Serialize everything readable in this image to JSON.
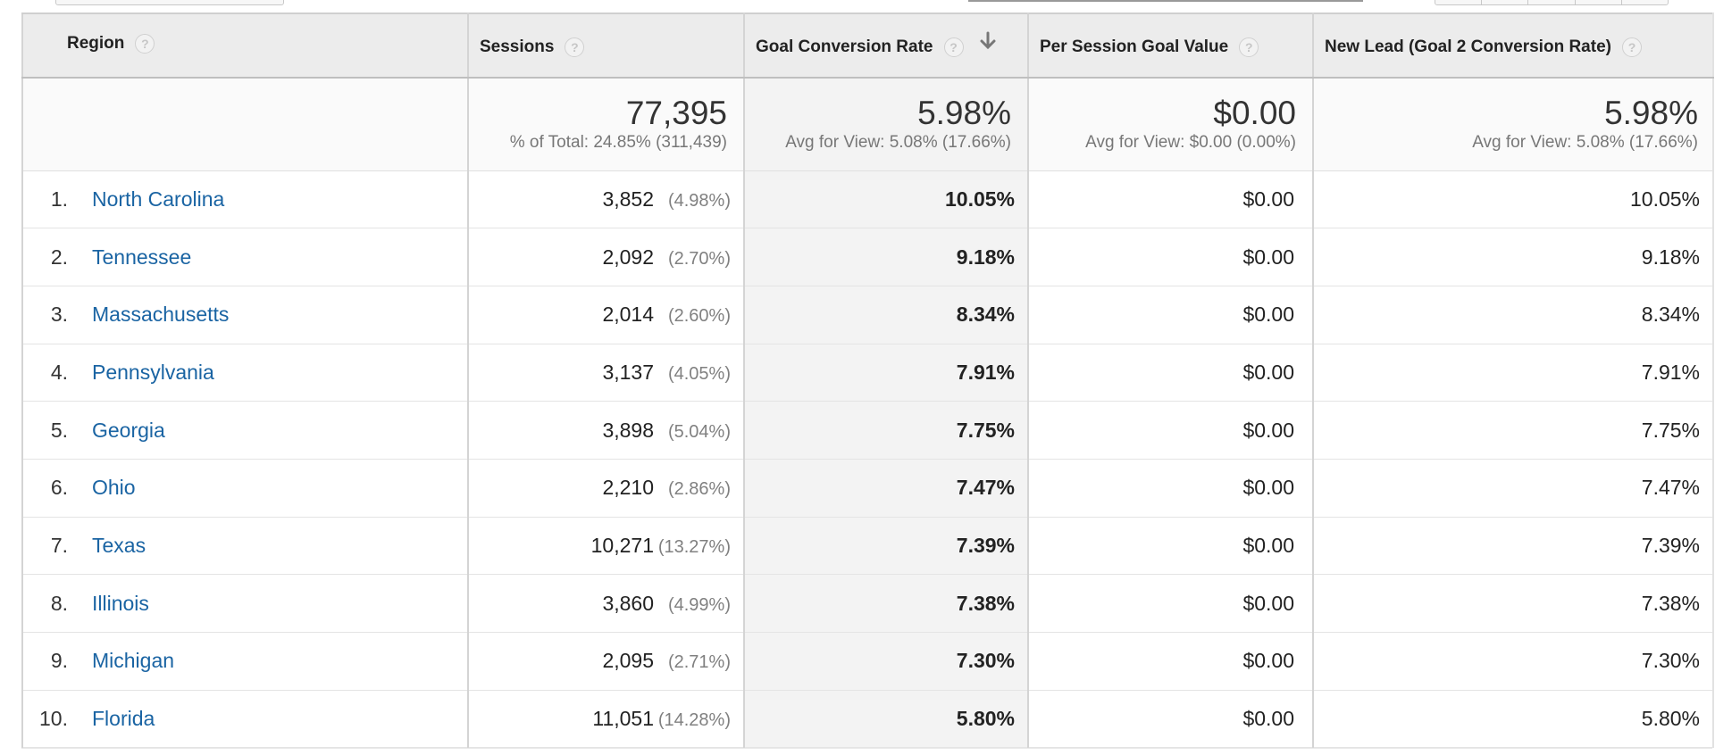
{
  "columns": {
    "region": "Region",
    "sessions": "Sessions",
    "goal_conversion_rate": "Goal Conversion Rate",
    "per_session_goal_value": "Per Session Goal Value",
    "new_lead": "New Lead (Goal 2 Conversion Rate)",
    "help_glyph": "?"
  },
  "sort": {
    "column": "goal_conversion_rate",
    "direction": "descending",
    "icon": "arrow-down-icon"
  },
  "totals": {
    "sessions": "77,395",
    "sessions_sub": "% of Total: 24.85% (311,439)",
    "goal_conversion_rate": "5.98%",
    "goal_conversion_rate_sub": "Avg for View: 5.08% (17.66%)",
    "per_session_goal_value": "$0.00",
    "per_session_goal_value_sub": "Avg for View: $0.00 (0.00%)",
    "new_lead": "5.98%",
    "new_lead_sub": "Avg for View: 5.08% (17.66%)"
  },
  "rows": [
    {
      "idx": "1.",
      "region": "North Carolina",
      "sessions": "3,852",
      "sessions_pct": "(4.98%)",
      "gcr": "10.05%",
      "psv": "$0.00",
      "new_lead": "10.05%"
    },
    {
      "idx": "2.",
      "region": "Tennessee",
      "sessions": "2,092",
      "sessions_pct": "(2.70%)",
      "gcr": "9.18%",
      "psv": "$0.00",
      "new_lead": "9.18%"
    },
    {
      "idx": "3.",
      "region": "Massachusetts",
      "sessions": "2,014",
      "sessions_pct": "(2.60%)",
      "gcr": "8.34%",
      "psv": "$0.00",
      "new_lead": "8.34%"
    },
    {
      "idx": "4.",
      "region": "Pennsylvania",
      "sessions": "3,137",
      "sessions_pct": "(4.05%)",
      "gcr": "7.91%",
      "psv": "$0.00",
      "new_lead": "7.91%"
    },
    {
      "idx": "5.",
      "region": "Georgia",
      "sessions": "3,898",
      "sessions_pct": "(5.04%)",
      "gcr": "7.75%",
      "psv": "$0.00",
      "new_lead": "7.75%"
    },
    {
      "idx": "6.",
      "region": "Ohio",
      "sessions": "2,210",
      "sessions_pct": "(2.86%)",
      "gcr": "7.47%",
      "psv": "$0.00",
      "new_lead": "7.47%"
    },
    {
      "idx": "7.",
      "region": "Texas",
      "sessions": "10,271",
      "sessions_pct": "(13.27%)",
      "gcr": "7.39%",
      "psv": "$0.00",
      "new_lead": "7.39%"
    },
    {
      "idx": "8.",
      "region": "Illinois",
      "sessions": "3,860",
      "sessions_pct": "(4.99%)",
      "gcr": "7.38%",
      "psv": "$0.00",
      "new_lead": "7.38%"
    },
    {
      "idx": "9.",
      "region": "Michigan",
      "sessions": "2,095",
      "sessions_pct": "(2.71%)",
      "gcr": "7.30%",
      "psv": "$0.00",
      "new_lead": "7.30%"
    },
    {
      "idx": "10.",
      "region": "Florida",
      "sessions": "11,051",
      "sessions_pct": "(14.28%)",
      "gcr": "5.80%",
      "psv": "$0.00",
      "new_lead": "5.80%"
    }
  ],
  "colors": {
    "link": "#1a64a3",
    "header_bg": "#ececec",
    "sorted_col_bg": "#f3f3f3"
  }
}
